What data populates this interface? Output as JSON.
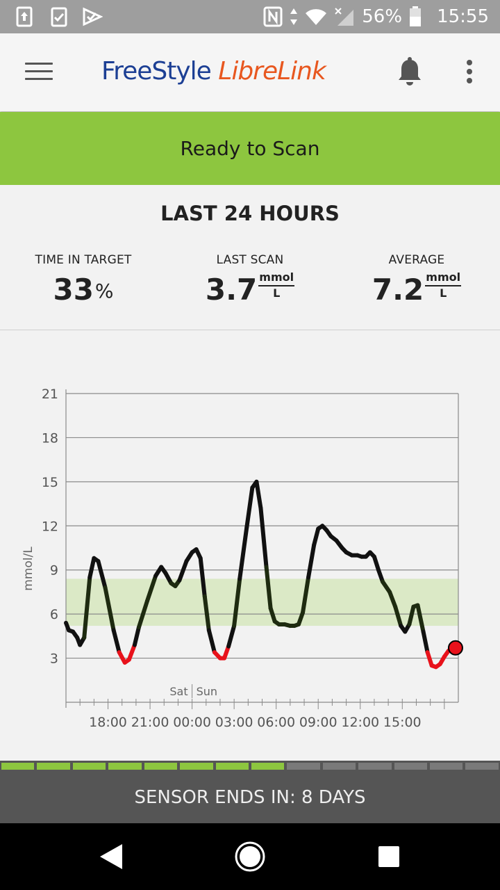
{
  "status_bar": {
    "battery": "56%",
    "time": "15:55",
    "icons": [
      "upload-icon",
      "clipboard-check-icon",
      "checkmark-app-icon",
      "nfc-icon",
      "data-arrows-icon",
      "wifi-icon",
      "signal-icon",
      "battery-icon"
    ]
  },
  "app_bar": {
    "logo_part1": "FreeStyle ",
    "logo_part2": "LibreLink",
    "menu_icon": "hamburger-menu-icon",
    "notification_icon": "bell-icon",
    "overflow_icon": "more-vert-icon"
  },
  "scan_banner": {
    "text": "Ready to Scan",
    "color": "#8dc63f"
  },
  "summary": {
    "title": "LAST 24 HOURS",
    "time_in_target": {
      "label": "TIME IN TARGET",
      "value": "33",
      "unit": "%"
    },
    "last_scan": {
      "label": "LAST SCAN",
      "value": "3.7",
      "unit_num": "mmol",
      "unit_den": "L"
    },
    "average": {
      "label": "AVERAGE",
      "value": "7.2",
      "unit_num": "mmol",
      "unit_den": "L"
    }
  },
  "chart_data": {
    "type": "line",
    "title": "",
    "xlabel": "",
    "ylabel": "mmol/L",
    "ylim": [
      0,
      21
    ],
    "y_ticks": [
      "3",
      "6",
      "9",
      "12",
      "15",
      "18",
      "21"
    ],
    "x_tick_labels": [
      "18:00",
      "21:00",
      "00:00",
      "03:00",
      "06:00",
      "09:00",
      "12:00",
      "15:00"
    ],
    "day_labels": [
      "Sat",
      "Sun"
    ],
    "target_range": [
      5.2,
      8.4
    ],
    "low_threshold": 3.9,
    "colors": {
      "line": "#111111",
      "low": "#e8121b",
      "in_range": "#1e2b10",
      "target_band": "#dbe9c6",
      "current_point": "#e8121b"
    },
    "x_hours_note": "hours relative to 15:00 Sat",
    "series": [
      {
        "points": [
          [
            15.0,
            5.4
          ],
          [
            15.2,
            4.9
          ],
          [
            15.5,
            4.8
          ],
          [
            15.8,
            4.4
          ],
          [
            16.0,
            3.9
          ],
          [
            16.3,
            4.4
          ],
          [
            16.7,
            8.5
          ],
          [
            17.0,
            9.8
          ],
          [
            17.3,
            9.6
          ],
          [
            17.8,
            7.8
          ],
          [
            18.4,
            4.9
          ],
          [
            18.8,
            3.4
          ],
          [
            19.2,
            2.7
          ],
          [
            19.5,
            2.9
          ],
          [
            19.9,
            3.9
          ],
          [
            20.2,
            5.1
          ],
          [
            20.8,
            6.9
          ],
          [
            21.4,
            8.6
          ],
          [
            21.8,
            9.2
          ],
          [
            22.1,
            8.8
          ],
          [
            22.5,
            8.1
          ],
          [
            22.8,
            7.9
          ],
          [
            23.1,
            8.3
          ],
          [
            23.6,
            9.6
          ],
          [
            24.0,
            10.2
          ],
          [
            24.3,
            10.4
          ],
          [
            24.6,
            9.8
          ],
          [
            24.9,
            7.2
          ],
          [
            25.2,
            4.9
          ],
          [
            25.6,
            3.4
          ],
          [
            26.0,
            3.0
          ],
          [
            26.3,
            3.0
          ],
          [
            26.6,
            3.8
          ],
          [
            27.0,
            5.2
          ],
          [
            27.4,
            8.4
          ],
          [
            27.9,
            11.9
          ],
          [
            28.3,
            14.6
          ],
          [
            28.6,
            15.0
          ],
          [
            28.9,
            13.2
          ],
          [
            29.3,
            9.2
          ],
          [
            29.6,
            6.4
          ],
          [
            29.9,
            5.5
          ],
          [
            30.2,
            5.3
          ],
          [
            30.6,
            5.3
          ],
          [
            31.0,
            5.2
          ],
          [
            31.3,
            5.2
          ],
          [
            31.6,
            5.3
          ],
          [
            31.9,
            6.1
          ],
          [
            32.3,
            8.5
          ],
          [
            32.7,
            10.7
          ],
          [
            33.0,
            11.8
          ],
          [
            33.3,
            12.0
          ],
          [
            33.6,
            11.7
          ],
          [
            33.9,
            11.3
          ],
          [
            34.3,
            11.0
          ],
          [
            34.7,
            10.5
          ],
          [
            35.0,
            10.2
          ],
          [
            35.4,
            10.0
          ],
          [
            35.8,
            10.0
          ],
          [
            36.1,
            9.9
          ],
          [
            36.4,
            9.9
          ],
          [
            36.7,
            10.2
          ],
          [
            37.0,
            9.9
          ],
          [
            37.3,
            9.0
          ],
          [
            37.6,
            8.2
          ],
          [
            38.1,
            7.5
          ],
          [
            38.5,
            6.5
          ],
          [
            38.9,
            5.2
          ],
          [
            39.2,
            4.8
          ],
          [
            39.5,
            5.3
          ],
          [
            39.8,
            6.5
          ],
          [
            40.1,
            6.6
          ],
          [
            40.5,
            4.8
          ],
          [
            40.8,
            3.4
          ],
          [
            41.1,
            2.5
          ],
          [
            41.4,
            2.4
          ],
          [
            41.7,
            2.6
          ],
          [
            42.0,
            3.1
          ],
          [
            42.3,
            3.5
          ],
          [
            42.7,
            3.7
          ]
        ]
      }
    ]
  },
  "sensor": {
    "text": "SENSOR ENDS IN: 8 DAYS",
    "segments_total": 14,
    "segments_elapsed": 8
  },
  "nav": {
    "back_icon": "back-triangle-icon",
    "home_icon": "home-circle-icon",
    "recents_icon": "recents-square-icon"
  }
}
